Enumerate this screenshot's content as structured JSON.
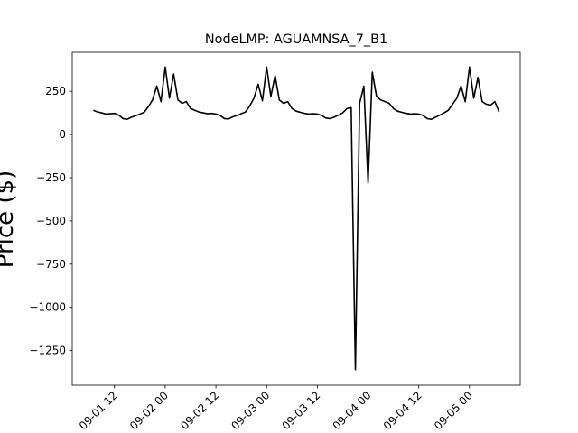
{
  "chart_data": {
    "type": "line",
    "title": "NodeLMP: AGUAMNSA_7_B1",
    "y_label": "Price ($)",
    "color": "#000000",
    "x": [
      "09-01 07",
      "09-01 08",
      "09-01 09",
      "09-01 10",
      "09-01 11",
      "09-01 12",
      "09-01 13",
      "09-01 14",
      "09-01 15",
      "09-01 16",
      "09-01 17",
      "09-01 18",
      "09-01 19",
      "09-01 20",
      "09-01 21",
      "09-01 22",
      "09-01 23",
      "09-02 00",
      "09-02 01",
      "09-02 02",
      "09-02 03",
      "09-02 04",
      "09-02 05",
      "09-02 06",
      "09-02 07",
      "09-02 08",
      "09-02 09",
      "09-02 10",
      "09-02 11",
      "09-02 12",
      "09-02 13",
      "09-02 14",
      "09-02 15",
      "09-02 16",
      "09-02 17",
      "09-02 18",
      "09-02 19",
      "09-02 20",
      "09-02 21",
      "09-02 22",
      "09-02 23",
      "09-03 00",
      "09-03 01",
      "09-03 02",
      "09-03 03",
      "09-03 04",
      "09-03 05",
      "09-03 06",
      "09-03 07",
      "09-03 08",
      "09-03 09",
      "09-03 10",
      "09-03 11",
      "09-03 12",
      "09-03 13",
      "09-03 14",
      "09-03 15",
      "09-03 16",
      "09-03 17",
      "09-03 18",
      "09-03 19",
      "09-03 20",
      "09-03 21",
      "09-03 22",
      "09-03 23",
      "09-04 00",
      "09-04 01",
      "09-04 02",
      "09-04 03",
      "09-04 04",
      "09-04 05",
      "09-04 06",
      "09-04 07",
      "09-04 08",
      "09-04 09",
      "09-04 10",
      "09-04 11",
      "09-04 12",
      "09-04 13",
      "09-04 14",
      "09-04 15",
      "09-04 16",
      "09-04 17",
      "09-04 18",
      "09-04 19",
      "09-04 20",
      "09-04 21",
      "09-04 22",
      "09-04 23",
      "09-05 00",
      "09-05 01",
      "09-05 02",
      "09-05 03",
      "09-05 04",
      "09-05 05",
      "09-05 06",
      "09-05 07"
    ],
    "values": [
      140,
      130,
      125,
      118,
      120,
      122,
      112,
      92,
      88,
      100,
      108,
      118,
      128,
      160,
      200,
      280,
      190,
      390,
      210,
      350,
      200,
      180,
      190,
      150,
      140,
      130,
      125,
      120,
      122,
      118,
      110,
      92,
      90,
      102,
      110,
      120,
      130,
      165,
      210,
      290,
      195,
      390,
      220,
      340,
      200,
      180,
      190,
      150,
      135,
      128,
      122,
      118,
      120,
      118,
      110,
      95,
      92,
      100,
      112,
      125,
      150,
      155,
      -1360,
      180,
      280,
      -280,
      360,
      220,
      200,
      190,
      180,
      150,
      135,
      128,
      122,
      118,
      120,
      118,
      110,
      92,
      88,
      100,
      112,
      125,
      140,
      175,
      210,
      280,
      190,
      390,
      210,
      330,
      190,
      175,
      170,
      190,
      130
    ],
    "xlim": [
      "09-01 02",
      "09-05 12"
    ],
    "xticks": [
      "09-01 12",
      "09-02 00",
      "09-02 12",
      "09-03 00",
      "09-03 12",
      "09-04 00",
      "09-04 12",
      "09-05 00"
    ],
    "ylim": [
      -1450,
      475
    ],
    "yticks": [
      250,
      0,
      {
        "value": -250,
        "label": "−250"
      },
      {
        "value": -500,
        "label": "−500"
      },
      {
        "value": -750,
        "label": "−750"
      },
      {
        "value": -1000,
        "label": "−1000"
      },
      {
        "value": -1250,
        "label": "−1250"
      }
    ]
  }
}
